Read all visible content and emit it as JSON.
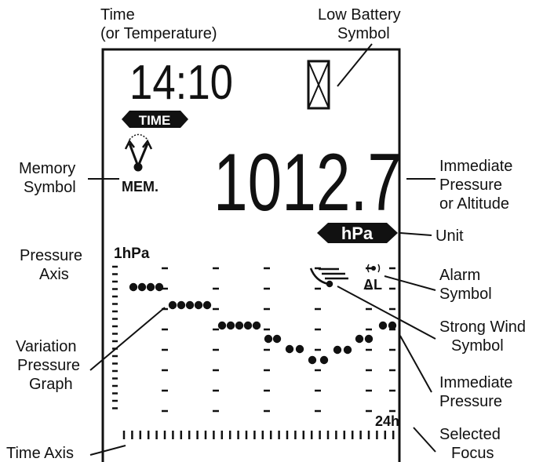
{
  "callouts": {
    "time": [
      "Time",
      "(or Temperature)"
    ],
    "low_battery": [
      "Low Battery",
      "Symbol"
    ],
    "memory": [
      "Memory",
      "Symbol"
    ],
    "immediate_pressure_altitude": [
      "Immediate",
      "Pressure",
      "or Altitude"
    ],
    "unit": [
      "Unit"
    ],
    "pressure_axis": [
      "Pressure",
      "Axis"
    ],
    "alarm": [
      "Alarm",
      "Symbol"
    ],
    "strong_wind": [
      "Strong Wind",
      "Symbol"
    ],
    "variation_graph": [
      "Variation",
      "Pressure",
      "Graph"
    ],
    "immediate_pressure": [
      "Immediate",
      "Pressure"
    ],
    "selected_focus": [
      "Selected",
      "Focus"
    ],
    "time_axis": [
      "Time Axis"
    ]
  },
  "display": {
    "time": "14:10",
    "time_badge": "TIME",
    "memory": "MEM.",
    "pressure": "1012.7",
    "unit_badge": "hPa",
    "axis_unit": "1hPa",
    "alarm": "AL",
    "focus": "24h"
  }
}
